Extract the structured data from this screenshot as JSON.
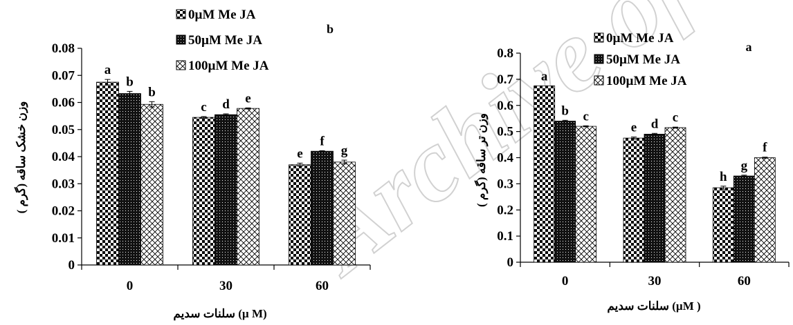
{
  "watermark": "Archive of SID",
  "colors": {
    "ink": "#000000",
    "bar_stroke": "#000000",
    "background": "#ffffff"
  },
  "chart_data": [
    {
      "type": "bar",
      "panel_label": "b",
      "categories": [
        "0",
        "30",
        "60"
      ],
      "ylim": [
        0,
        0.08
      ],
      "yticks": [
        "0",
        "0.01",
        "0.02",
        "0.03",
        "0.04",
        "0.05",
        "0.06",
        "0.07",
        "0.08"
      ],
      "ylabel": "وزن خشک ساقه (گرم )",
      "xlabel": "سلنات سدیم (µ M)",
      "legend": "top-center",
      "series": [
        {
          "name": "0µM Me JA",
          "pattern": "checker",
          "values": [
            0.0675,
            0.0545,
            0.037
          ],
          "errors": [
            0.001,
            0.0003,
            0.0006
          ],
          "letters": [
            "a",
            "c",
            "e"
          ]
        },
        {
          "name": "50µM Me JA",
          "pattern": "dense",
          "values": [
            0.0633,
            0.0555,
            0.042
          ],
          "errors": [
            0.0008,
            0.0003,
            0.0002
          ],
          "letters": [
            "b",
            "d",
            "f"
          ]
        },
        {
          "name": "100µM Me JA",
          "pattern": "cross",
          "values": [
            0.0593,
            0.0578,
            0.038
          ],
          "errors": [
            0.001,
            0.0002,
            0.0007
          ],
          "letters": [
            "b",
            "e",
            "g"
          ]
        }
      ]
    },
    {
      "type": "bar",
      "panel_label": "a",
      "categories": [
        "0",
        "30",
        "60"
      ],
      "ylim": [
        0,
        0.8
      ],
      "yticks": [
        "0",
        "0.1",
        "0.2",
        "0.3",
        "0.4",
        "0.5",
        "0.6",
        "0.7",
        "0.8"
      ],
      "ylabel": "وزن تر ساقه (گرم )",
      "xlabel": "سلنات سدیم (µM )",
      "legend": "top-left",
      "series": [
        {
          "name": "0µM Me JA",
          "pattern": "checker",
          "values": [
            0.675,
            0.475,
            0.285
          ],
          "errors": [
            0,
            0.004,
            0.006
          ],
          "letters": [
            "a",
            "e",
            "h"
          ]
        },
        {
          "name": "50µM Me JA",
          "pattern": "dense",
          "values": [
            0.54,
            0.49,
            0.33
          ],
          "errors": [
            0.003,
            0.003,
            0.003
          ],
          "letters": [
            "b",
            "d",
            "g"
          ]
        },
        {
          "name": "100µM Me JA",
          "pattern": "cross",
          "values": [
            0.52,
            0.515,
            0.4
          ],
          "errors": [
            0.002,
            0.002,
            0.002
          ],
          "letters": [
            "c",
            "c",
            "f"
          ]
        }
      ]
    }
  ]
}
